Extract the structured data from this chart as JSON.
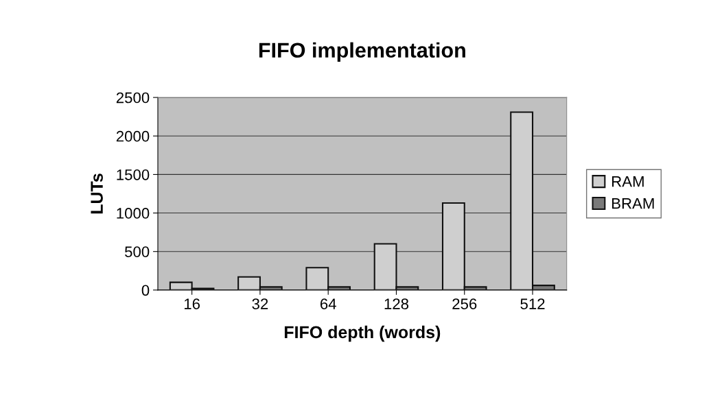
{
  "chart_data": {
    "type": "bar",
    "title": "FIFO implementation",
    "xlabel": "FIFO depth (words)",
    "ylabel": "LUTs",
    "categories": [
      "16",
      "32",
      "64",
      "128",
      "256",
      "512"
    ],
    "series": [
      {
        "name": "RAM",
        "color": "#cfcfcf",
        "values": [
          100,
          170,
          290,
          600,
          1130,
          2310
        ]
      },
      {
        "name": "BRAM",
        "color": "#7a7a7a",
        "values": [
          20,
          40,
          40,
          40,
          40,
          60
        ]
      }
    ],
    "ylim": [
      0,
      2500
    ],
    "yticks": [
      0,
      500,
      1000,
      1500,
      2000,
      2500
    ],
    "grid": "y",
    "legend": "right"
  }
}
